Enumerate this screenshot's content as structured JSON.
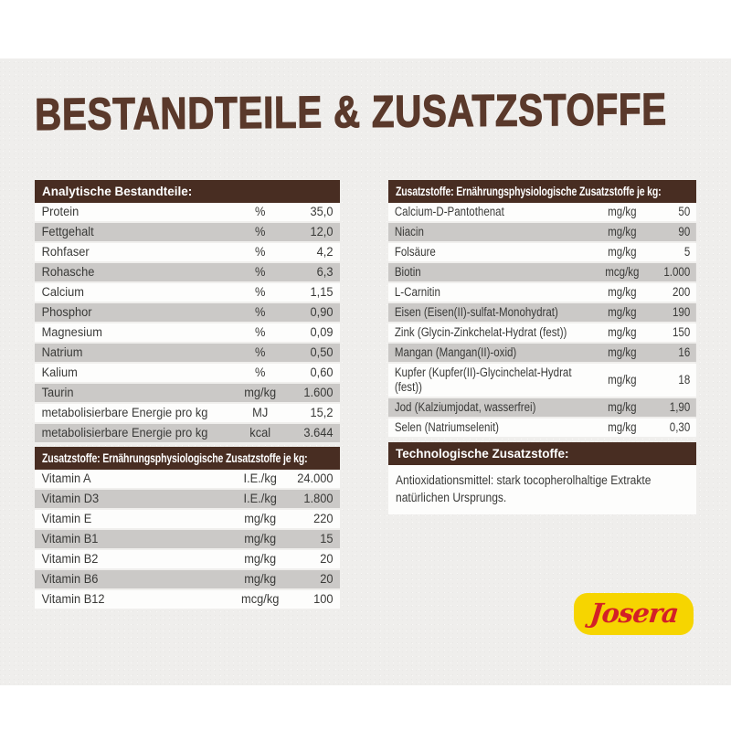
{
  "page": {
    "title": "BESTANDTEILE & ZUSATZSTOFFE"
  },
  "colors": {
    "header_brown": "#482d22",
    "title_brown": "#5a392b",
    "stripe_gray": "#cbc9c7",
    "row_white": "#fdfdfc",
    "paper": "#efeeec",
    "logo_yellow": "#f6d500",
    "logo_red": "#d32027"
  },
  "left_column": {
    "analytical": {
      "header": "Analytische Bestandteile:",
      "rows": [
        {
          "label": "Protein",
          "unit": "%",
          "value": "35,0"
        },
        {
          "label": "Fettgehalt",
          "unit": "%",
          "value": "12,0"
        },
        {
          "label": "Rohfaser",
          "unit": "%",
          "value": "4,2"
        },
        {
          "label": "Rohasche",
          "unit": "%",
          "value": "6,3"
        },
        {
          "label": "Calcium",
          "unit": "%",
          "value": "1,15"
        },
        {
          "label": "Phosphor",
          "unit": "%",
          "value": "0,90"
        },
        {
          "label": "Magnesium",
          "unit": "%",
          "value": "0,09"
        },
        {
          "label": "Natrium",
          "unit": "%",
          "value": "0,50"
        },
        {
          "label": "Kalium",
          "unit": "%",
          "value": "0,60"
        },
        {
          "label": "Taurin",
          "unit": "mg/kg",
          "value": "1.600"
        },
        {
          "label": "metabolisierbare Energie pro kg",
          "unit": "MJ",
          "value": "15,2"
        },
        {
          "label": "metabolisierbare Energie pro kg",
          "unit": "kcal",
          "value": "3.644"
        }
      ]
    },
    "vitamins": {
      "header": "Zusatzstoffe: Ernährungsphysiologische Zusatzstoffe je kg:",
      "rows": [
        {
          "label": "Vitamin A",
          "unit": "I.E./kg",
          "value": "24.000"
        },
        {
          "label": "Vitamin D3",
          "unit": "I.E./kg",
          "value": "1.800"
        },
        {
          "label": "Vitamin E",
          "unit": "mg/kg",
          "value": "220"
        },
        {
          "label": "Vitamin B1",
          "unit": "mg/kg",
          "value": "15"
        },
        {
          "label": "Vitamin B2",
          "unit": "mg/kg",
          "value": "20"
        },
        {
          "label": "Vitamin B6",
          "unit": "mg/kg",
          "value": "20"
        },
        {
          "label": "Vitamin B12",
          "unit": "mcg/kg",
          "value": "100"
        }
      ]
    }
  },
  "right_column": {
    "minerals": {
      "header": "Zusatzstoffe: Ernährungsphysiologische Zusatzstoffe je kg:",
      "rows": [
        {
          "label": "Calcium-D-Pantothenat",
          "unit": "mg/kg",
          "value": "50"
        },
        {
          "label": "Niacin",
          "unit": "mg/kg",
          "value": "90"
        },
        {
          "label": "Folsäure",
          "unit": "mg/kg",
          "value": "5"
        },
        {
          "label": "Biotin",
          "unit": "mcg/kg",
          "value": "1.000"
        },
        {
          "label": "L-Carnitin",
          "unit": "mg/kg",
          "value": "200"
        },
        {
          "label": "Eisen (Eisen(II)-sulfat-Monohydrat)",
          "unit": "mg/kg",
          "value": "190"
        },
        {
          "label": "Zink (Glycin-Zinkchelat-Hydrat (fest))",
          "unit": "mg/kg",
          "value": "150"
        },
        {
          "label": "Mangan (Mangan(II)-oxid)",
          "unit": "mg/kg",
          "value": "16"
        },
        {
          "label": "Kupfer (Kupfer(II)-Glycinchelat-Hydrat (fest))",
          "unit": "mg/kg",
          "value": "18"
        },
        {
          "label": "Jod (Kalziumjodat, wasserfrei)",
          "unit": "mg/kg",
          "value": "1,90"
        },
        {
          "label": "Selen (Natriumselenit)",
          "unit": "mg/kg",
          "value": "0,30"
        }
      ]
    },
    "technological": {
      "header": "Technologische Zusatzstoffe:",
      "text": "Antioxidationsmittel: stark tocopherolhaltige Extrakte natürlichen Ursprungs."
    }
  },
  "logo": {
    "text": "Josera"
  }
}
